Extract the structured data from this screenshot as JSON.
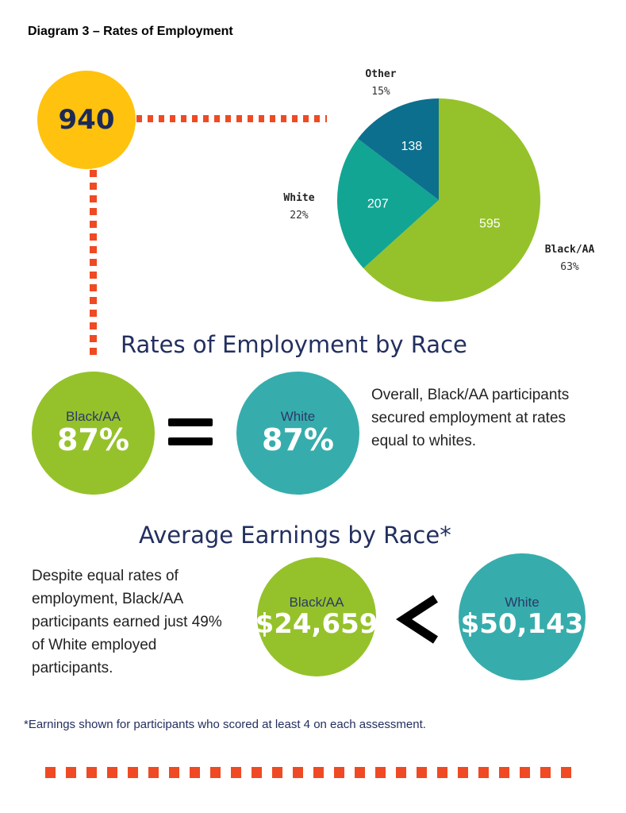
{
  "diagram_title": "Diagram 3 – Rates of Employment",
  "total": {
    "value": "940",
    "color": "#ffc20e"
  },
  "chart_data": {
    "type": "pie",
    "total": 940,
    "slices": [
      {
        "name": "Black/AA",
        "value": 595,
        "pct": "63%",
        "color": "#95c22a"
      },
      {
        "name": "White",
        "value": 207,
        "pct": "22%",
        "color": "#12a593"
      },
      {
        "name": "Other",
        "value": 138,
        "pct": "15%",
        "color": "#0d6f8e"
      }
    ]
  },
  "rates": {
    "title": "Rates of Employment by Race",
    "black": {
      "label": "Black/AA",
      "value": "87%",
      "color": "#95c22a"
    },
    "white": {
      "label": "White",
      "value": "87%",
      "color": "#36adac"
    },
    "text": "Overall, Black/AA participants secured employment at rates equal to whites."
  },
  "earnings": {
    "title": "Average Earnings by Race*",
    "text": "Despite equal rates of employment, Black/AA participants earned just 49% of White employed participants.",
    "black": {
      "label": "Black/AA",
      "value": "$24,659",
      "color": "#95c22a"
    },
    "white": {
      "label": "White",
      "value": "$50,143",
      "color": "#36adac"
    },
    "comparison": "<"
  },
  "footnote": "*Earnings shown for participants who scored at least 4 on each assessment.",
  "accent_color": "#ef4a23"
}
